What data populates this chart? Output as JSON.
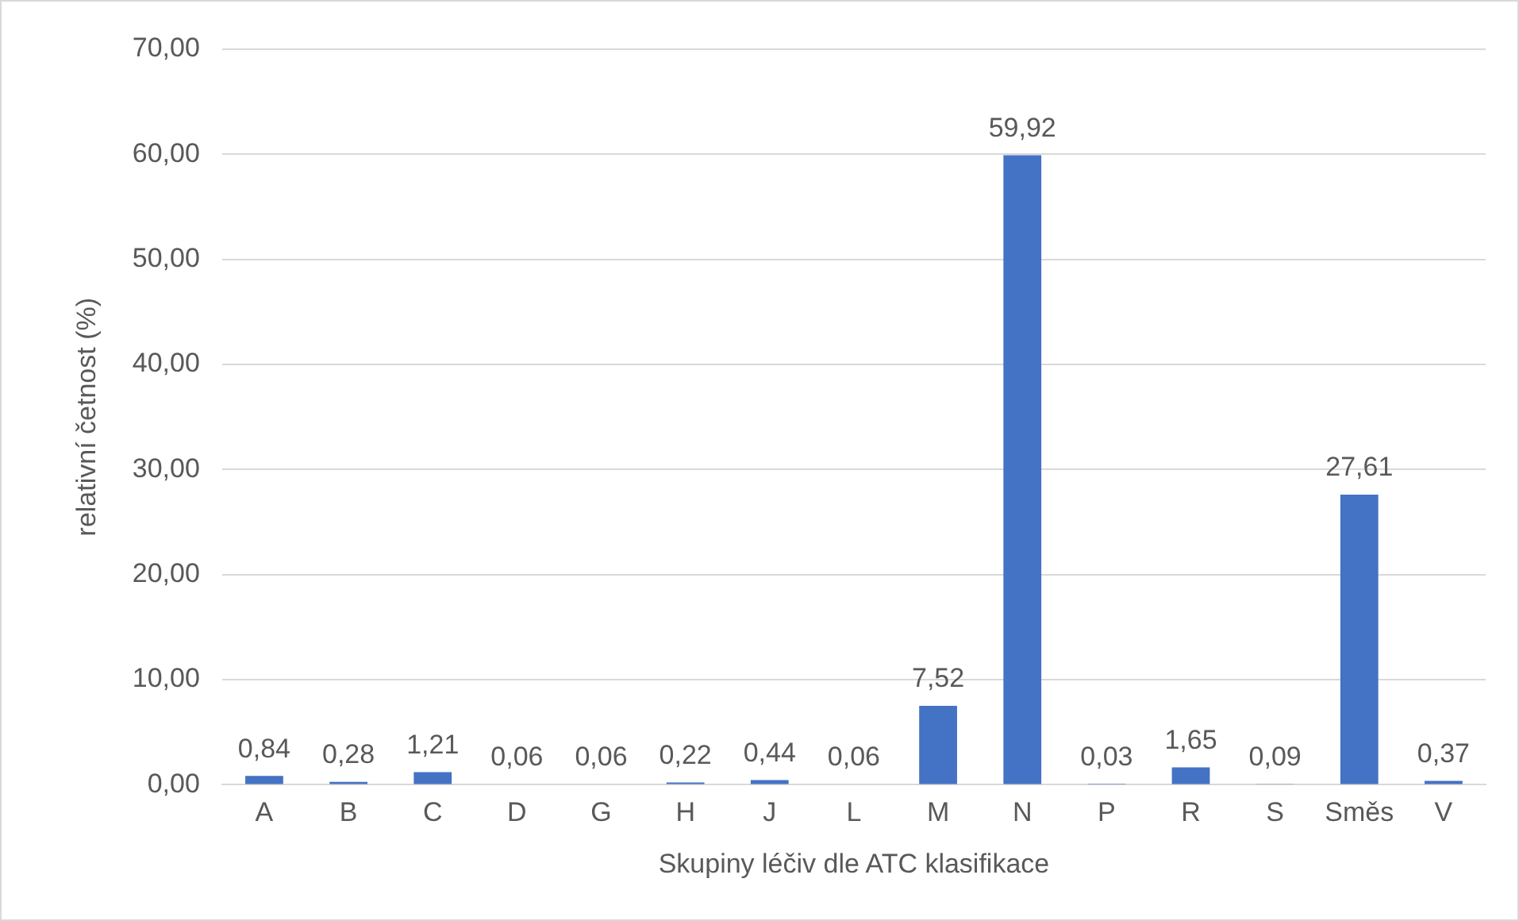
{
  "chart_data": {
    "type": "bar",
    "xlabel": "Skupiny léčiv dle ATC klasifikace",
    "ylabel": "relativní četnost (%)",
    "categories": [
      "A",
      "B",
      "C",
      "D",
      "G",
      "H",
      "J",
      "L",
      "M",
      "N",
      "P",
      "R",
      "S",
      "Směs",
      "V"
    ],
    "values": [
      0.84,
      0.28,
      1.21,
      0.06,
      0.06,
      0.22,
      0.44,
      0.06,
      7.52,
      59.92,
      0.03,
      1.65,
      0.09,
      27.61,
      0.37
    ],
    "value_labels": [
      "0,84",
      "0,28",
      "1,21",
      "0,06",
      "0,06",
      "0,22",
      "0,44",
      "0,06",
      "7,52",
      "59,92",
      "0,03",
      "1,65",
      "0,09",
      "27,61",
      "0,37"
    ],
    "color": "#4472c4",
    "ylim": [
      0,
      70
    ],
    "yticks": [
      {
        "value": 0,
        "label": "0,00"
      },
      {
        "value": 10,
        "label": "10,00"
      },
      {
        "value": 20,
        "label": "20,00"
      },
      {
        "value": 30,
        "label": "30,00"
      },
      {
        "value": 40,
        "label": "40,00"
      },
      {
        "value": 50,
        "label": "50,00"
      },
      {
        "value": 60,
        "label": "60,00"
      },
      {
        "value": 70,
        "label": "70,00"
      }
    ],
    "grid": "y",
    "legend": false
  }
}
